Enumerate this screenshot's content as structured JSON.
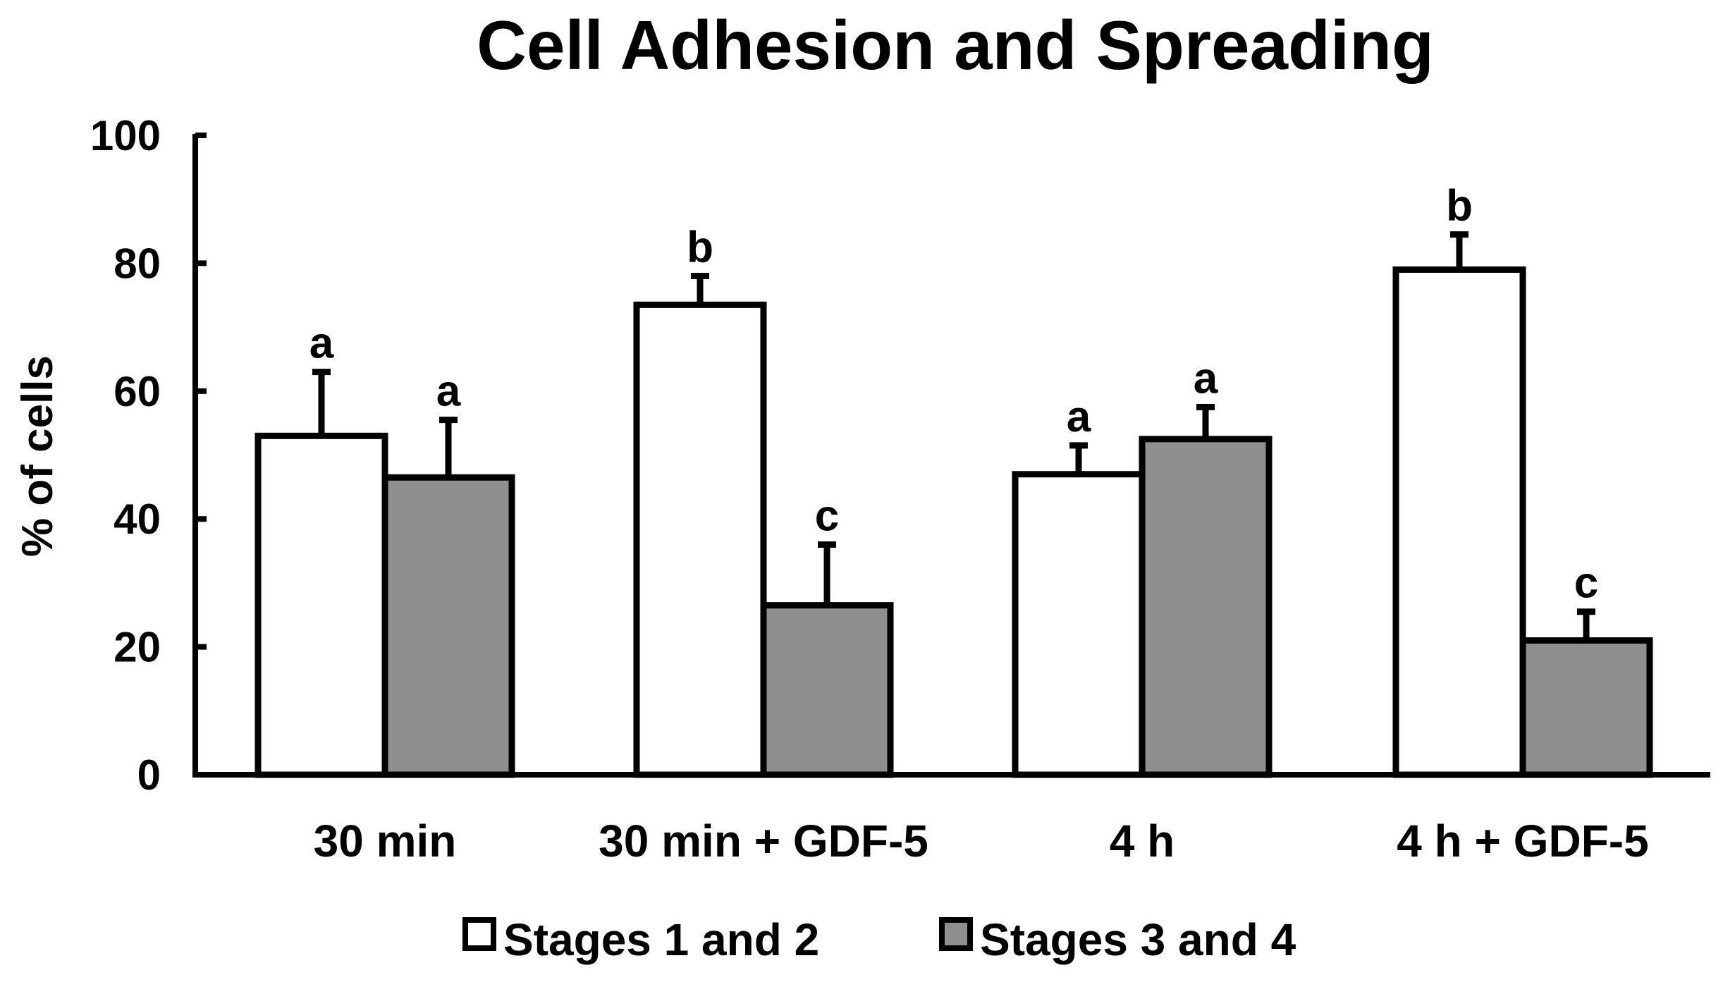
{
  "chart_data": {
    "type": "bar",
    "title": "Cell Adhesion and Spreading",
    "xlabel": "",
    "ylabel": "% of cells",
    "ylim": [
      0,
      100
    ],
    "yticks": [
      "0",
      "20",
      "40",
      "60",
      "80",
      "100"
    ],
    "categories": [
      "30 min",
      "30 min + GDF-5",
      "4 h",
      "4 h + GDF-5"
    ],
    "series": [
      {
        "name": "Stages 1 and 2",
        "color": "#ffffff",
        "values": [
          53,
          73.5,
          47,
          79
        ],
        "errors": [
          10,
          4.5,
          4.5,
          5.5
        ],
        "letters": [
          "a",
          "b",
          "a",
          "b"
        ]
      },
      {
        "name": "Stages 3 and 4",
        "color": "#8f8f8f",
        "values": [
          46.5,
          26.5,
          52.5,
          21
        ],
        "errors": [
          9,
          9.5,
          5,
          4.5
        ],
        "letters": [
          "a",
          "c",
          "a",
          "c"
        ]
      }
    ],
    "legend": {
      "placement": "bottom-center"
    },
    "grid": false
  }
}
